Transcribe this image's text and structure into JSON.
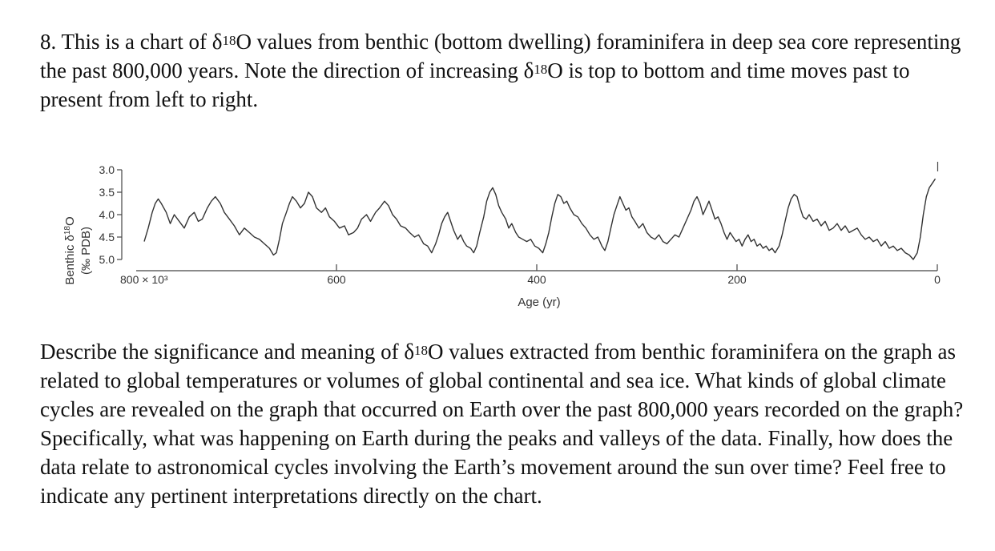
{
  "question": {
    "number": "8.",
    "intro_parts": [
      "This is a chart of δ",
      "18",
      "O values from benthic (bottom dwelling) foraminifera in deep sea core representing the past 800,000 years. Note the direction of increasing δ",
      "18",
      "O is top to bottom and time moves past to present from left to right."
    ],
    "body_parts": [
      "Describe the significance and meaning of δ",
      "18",
      "O values extracted from benthic foraminifera on the graph as related to global temperatures or volumes of global continental and sea ice. What kinds of global climate cycles are revealed on the graph that occurred on Earth over the past 800,000 years recorded on the graph? Specifically, what was happening on Earth during the peaks and valleys of the data. Finally, how does the data relate to astronomical cycles involving the Earth’s movement around the sun over time? Feel free to indicate any pertinent interpretations directly on the chart."
    ]
  },
  "chart_data": {
    "type": "line",
    "ylabel_line1": "Benthic δ",
    "ylabel_sup": "18",
    "ylabel_tail": "O",
    "ylabel_line2": "(‰ PDB)",
    "xlabel": "Age (yr)",
    "y_inverted": true,
    "ylim": [
      3.0,
      5.0
    ],
    "yticks": [
      "3.0",
      "3.5",
      "4.0",
      "4.5",
      "5.0"
    ],
    "xlim": [
      800,
      0
    ],
    "xticks": [
      {
        "value": 800,
        "label": "800 × 10³"
      },
      {
        "value": 600,
        "label": "600"
      },
      {
        "value": 400,
        "label": "400"
      },
      {
        "value": 200,
        "label": "200"
      },
      {
        "value": 0,
        "label": "0"
      }
    ],
    "series": [
      {
        "name": "Benthic δ18O",
        "points": [
          [
            792,
            4.6
          ],
          [
            788,
            4.3
          ],
          [
            784,
            3.95
          ],
          [
            781,
            3.75
          ],
          [
            778,
            3.65
          ],
          [
            775,
            3.75
          ],
          [
            770,
            3.95
          ],
          [
            766,
            4.2
          ],
          [
            762,
            4.0
          ],
          [
            757,
            4.15
          ],
          [
            752,
            4.3
          ],
          [
            747,
            4.05
          ],
          [
            742,
            3.95
          ],
          [
            738,
            4.15
          ],
          [
            734,
            4.1
          ],
          [
            729,
            3.85
          ],
          [
            725,
            3.7
          ],
          [
            721,
            3.6
          ],
          [
            716,
            3.75
          ],
          [
            712,
            3.95
          ],
          [
            707,
            4.1
          ],
          [
            702,
            4.25
          ],
          [
            697,
            4.45
          ],
          [
            692,
            4.3
          ],
          [
            687,
            4.4
          ],
          [
            682,
            4.5
          ],
          [
            677,
            4.55
          ],
          [
            672,
            4.65
          ],
          [
            667,
            4.75
          ],
          [
            663,
            4.9
          ],
          [
            660,
            4.85
          ],
          [
            657,
            4.55
          ],
          [
            654,
            4.2
          ],
          [
            650,
            3.95
          ],
          [
            647,
            3.75
          ],
          [
            644,
            3.6
          ],
          [
            640,
            3.7
          ],
          [
            636,
            3.85
          ],
          [
            632,
            3.75
          ],
          [
            628,
            3.5
          ],
          [
            624,
            3.6
          ],
          [
            620,
            3.85
          ],
          [
            615,
            3.95
          ],
          [
            611,
            3.85
          ],
          [
            607,
            4.05
          ],
          [
            602,
            4.15
          ],
          [
            597,
            4.3
          ],
          [
            592,
            4.25
          ],
          [
            588,
            4.45
          ],
          [
            583,
            4.4
          ],
          [
            579,
            4.3
          ],
          [
            575,
            4.1
          ],
          [
            570,
            4.0
          ],
          [
            566,
            4.15
          ],
          [
            561,
            3.95
          ],
          [
            557,
            3.85
          ],
          [
            552,
            3.7
          ],
          [
            548,
            3.8
          ],
          [
            544,
            4.0
          ],
          [
            540,
            4.1
          ],
          [
            536,
            4.25
          ],
          [
            531,
            4.3
          ],
          [
            527,
            4.4
          ],
          [
            522,
            4.5
          ],
          [
            518,
            4.45
          ],
          [
            513,
            4.65
          ],
          [
            509,
            4.7
          ],
          [
            505,
            4.85
          ],
          [
            501,
            4.65
          ],
          [
            498,
            4.45
          ],
          [
            495,
            4.2
          ],
          [
            492,
            4.05
          ],
          [
            489,
            3.95
          ],
          [
            486,
            4.15
          ],
          [
            483,
            4.35
          ],
          [
            479,
            4.55
          ],
          [
            476,
            4.45
          ],
          [
            473,
            4.6
          ],
          [
            470,
            4.7
          ],
          [
            466,
            4.75
          ],
          [
            463,
            4.85
          ],
          [
            460,
            4.7
          ],
          [
            457,
            4.4
          ],
          [
            453,
            4.05
          ],
          [
            450,
            3.7
          ],
          [
            447,
            3.5
          ],
          [
            444,
            3.4
          ],
          [
            441,
            3.55
          ],
          [
            438,
            3.8
          ],
          [
            435,
            3.95
          ],
          [
            431,
            4.1
          ],
          [
            428,
            4.3
          ],
          [
            425,
            4.2
          ],
          [
            421,
            4.4
          ],
          [
            418,
            4.5
          ],
          [
            414,
            4.55
          ],
          [
            410,
            4.6
          ],
          [
            406,
            4.55
          ],
          [
            402,
            4.7
          ],
          [
            398,
            4.75
          ],
          [
            394,
            4.85
          ],
          [
            391,
            4.65
          ],
          [
            388,
            4.4
          ],
          [
            385,
            4.05
          ],
          [
            382,
            3.75
          ],
          [
            379,
            3.55
          ],
          [
            376,
            3.6
          ],
          [
            373,
            3.75
          ],
          [
            370,
            3.7
          ],
          [
            367,
            3.85
          ],
          [
            363,
            4.0
          ],
          [
            359,
            4.05
          ],
          [
            355,
            4.2
          ],
          [
            351,
            4.3
          ],
          [
            347,
            4.45
          ],
          [
            343,
            4.55
          ],
          [
            339,
            4.5
          ],
          [
            335,
            4.7
          ],
          [
            332,
            4.8
          ],
          [
            329,
            4.6
          ],
          [
            326,
            4.3
          ],
          [
            323,
            4.0
          ],
          [
            320,
            3.8
          ],
          [
            317,
            3.6
          ],
          [
            314,
            3.75
          ],
          [
            311,
            3.9
          ],
          [
            308,
            3.85
          ],
          [
            305,
            4.05
          ],
          [
            302,
            4.15
          ],
          [
            298,
            4.3
          ],
          [
            294,
            4.2
          ],
          [
            290,
            4.4
          ],
          [
            286,
            4.5
          ],
          [
            282,
            4.55
          ],
          [
            278,
            4.45
          ],
          [
            274,
            4.6
          ],
          [
            270,
            4.65
          ],
          [
            266,
            4.55
          ],
          [
            262,
            4.45
          ],
          [
            258,
            4.5
          ],
          [
            254,
            4.3
          ],
          [
            250,
            4.1
          ],
          [
            246,
            3.9
          ],
          [
            243,
            3.7
          ],
          [
            240,
            3.6
          ],
          [
            237,
            3.75
          ],
          [
            234,
            4.0
          ],
          [
            231,
            3.85
          ],
          [
            228,
            3.7
          ],
          [
            225,
            3.9
          ],
          [
            222,
            4.1
          ],
          [
            219,
            4.05
          ],
          [
            216,
            4.2
          ],
          [
            213,
            4.4
          ],
          [
            210,
            4.55
          ],
          [
            207,
            4.4
          ],
          [
            204,
            4.5
          ],
          [
            201,
            4.6
          ],
          [
            198,
            4.55
          ],
          [
            195,
            4.7
          ],
          [
            192,
            4.55
          ],
          [
            189,
            4.45
          ],
          [
            186,
            4.6
          ],
          [
            183,
            4.55
          ],
          [
            180,
            4.7
          ],
          [
            177,
            4.65
          ],
          [
            174,
            4.75
          ],
          [
            171,
            4.7
          ],
          [
            168,
            4.8
          ],
          [
            165,
            4.75
          ],
          [
            162,
            4.85
          ],
          [
            158,
            4.7
          ],
          [
            155,
            4.45
          ],
          [
            152,
            4.15
          ],
          [
            149,
            3.85
          ],
          [
            146,
            3.65
          ],
          [
            143,
            3.55
          ],
          [
            140,
            3.6
          ],
          [
            137,
            3.85
          ],
          [
            134,
            4.05
          ],
          [
            131,
            4.1
          ],
          [
            128,
            4.0
          ],
          [
            124,
            4.15
          ],
          [
            120,
            4.1
          ],
          [
            116,
            4.25
          ],
          [
            112,
            4.15
          ],
          [
            108,
            4.35
          ],
          [
            104,
            4.3
          ],
          [
            100,
            4.2
          ],
          [
            96,
            4.35
          ],
          [
            92,
            4.25
          ],
          [
            88,
            4.4
          ],
          [
            84,
            4.35
          ],
          [
            80,
            4.3
          ],
          [
            76,
            4.45
          ],
          [
            72,
            4.55
          ],
          [
            68,
            4.5
          ],
          [
            64,
            4.6
          ],
          [
            60,
            4.55
          ],
          [
            56,
            4.7
          ],
          [
            52,
            4.6
          ],
          [
            48,
            4.75
          ],
          [
            44,
            4.7
          ],
          [
            40,
            4.8
          ],
          [
            36,
            4.75
          ],
          [
            32,
            4.85
          ],
          [
            28,
            4.9
          ],
          [
            24,
            5.0
          ],
          [
            20,
            4.85
          ],
          [
            17,
            4.5
          ],
          [
            14,
            4.0
          ],
          [
            11,
            3.6
          ],
          [
            8,
            3.4
          ],
          [
            5,
            3.3
          ],
          [
            2,
            3.2
          ]
        ]
      }
    ]
  }
}
